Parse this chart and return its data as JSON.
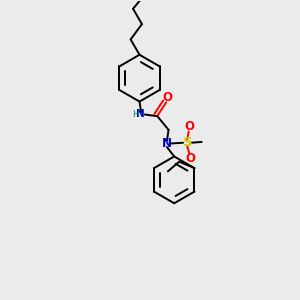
{
  "background_color": "#ebebeb",
  "atom_colors": {
    "N": "#0000cc",
    "O": "#ff0000",
    "S": "#cccc00",
    "NH": "#008080"
  },
  "line_color": "#000000",
  "line_width": 1.4,
  "figsize": [
    3.0,
    3.0
  ],
  "dpi": 100,
  "xlim": [
    -0.15,
    0.85
  ],
  "ylim": [
    -0.9,
    0.95
  ]
}
